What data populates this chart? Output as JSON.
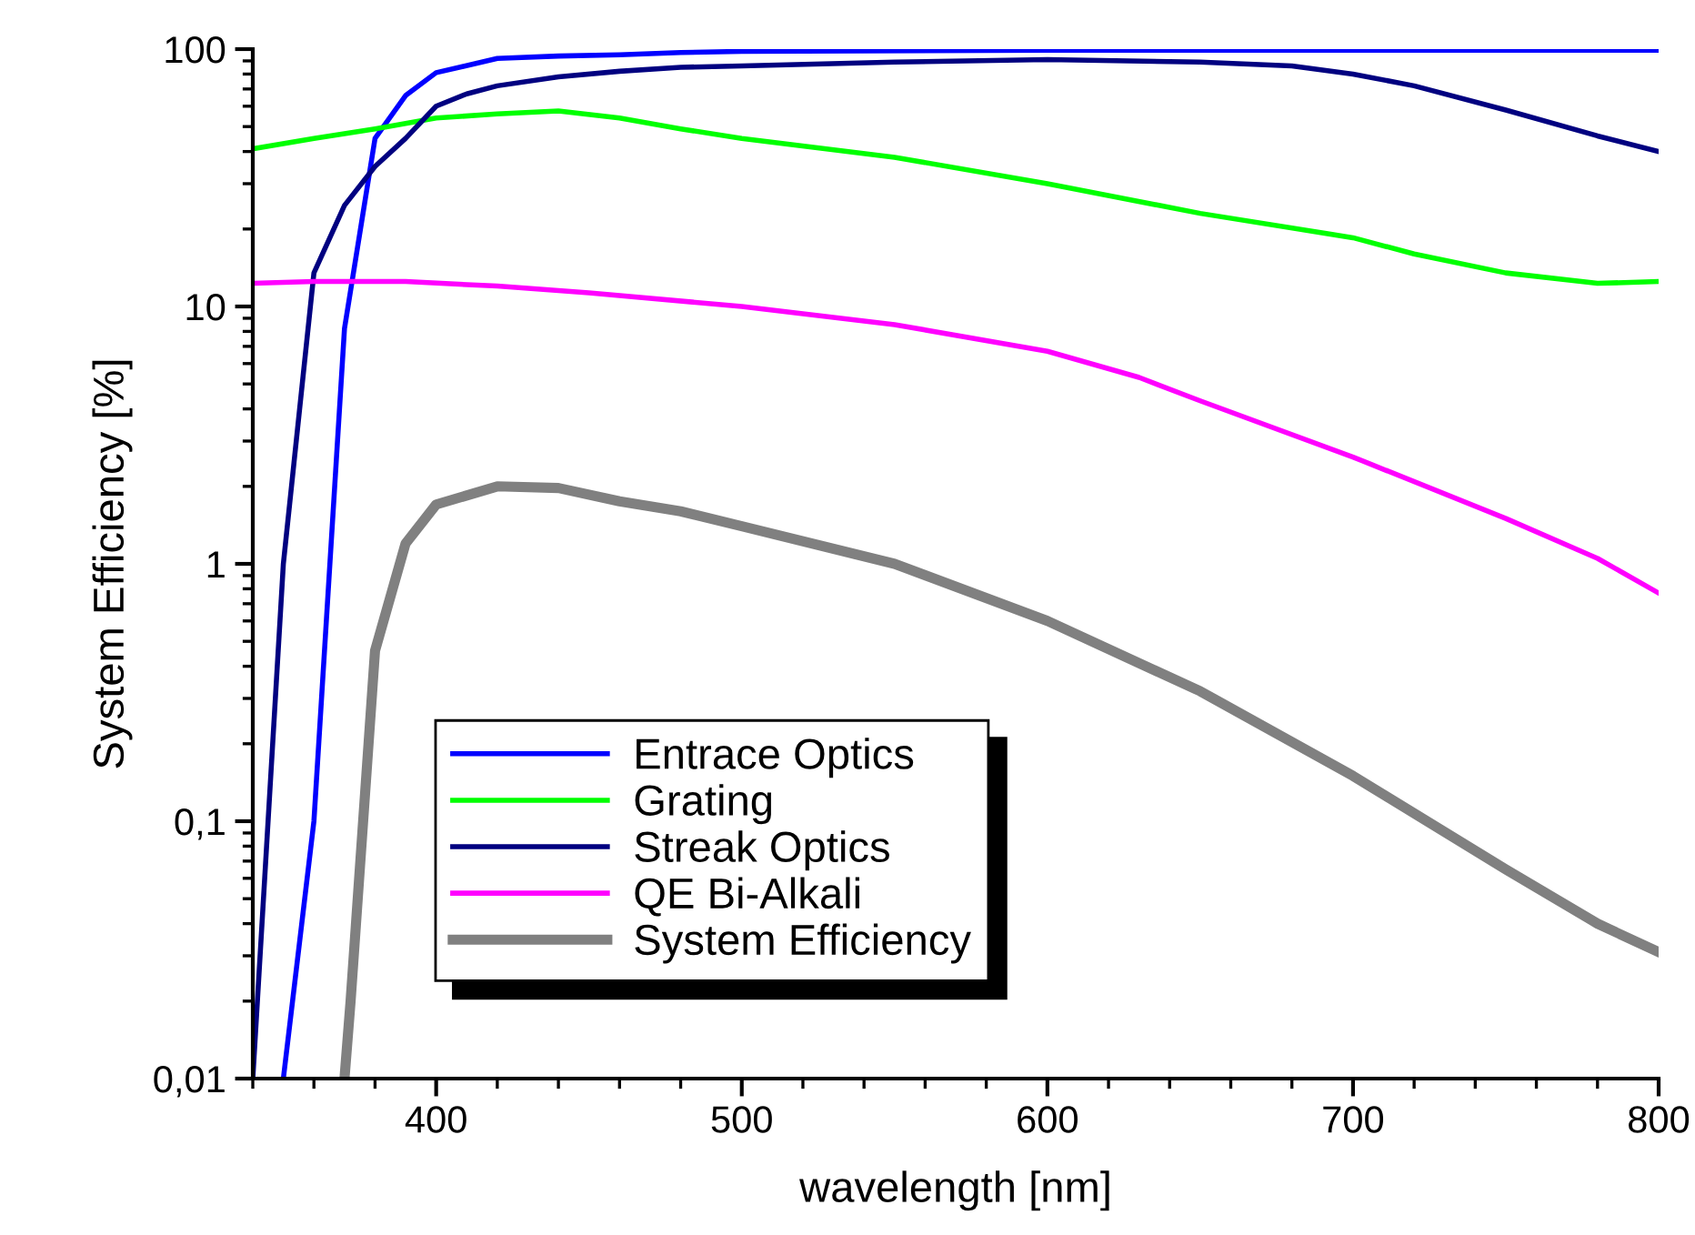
{
  "chart_data": {
    "type": "line",
    "xlabel": "wavelength [nm]",
    "ylabel": "System Efficiency [%]",
    "log": "y",
    "grid": false,
    "legend": "bottom left",
    "marker": "none",
    "line_style": "solid",
    "xlim": [
      340,
      800
    ],
    "xticks": [
      400,
      500,
      600,
      700,
      800
    ],
    "ylim": [
      0.01,
      100
    ],
    "yticks": [
      {
        "value": 0.01,
        "label": "0,01"
      },
      {
        "value": 0.1,
        "label": "0,1"
      },
      1,
      10,
      100
    ],
    "series": [
      {
        "name": "Entrace Optics",
        "color": "#0000ff",
        "x": [
          350,
          360,
          370,
          380,
          390,
          400,
          420,
          440,
          460,
          480,
          500,
          600,
          700,
          800
        ],
        "values": [
          0.01,
          0.1,
          8.2,
          45,
          66,
          81,
          92,
          94,
          95,
          97,
          98,
          99,
          99,
          99
        ]
      },
      {
        "name": "Grating",
        "color": "#00ff00",
        "x": [
          340,
          360,
          380,
          400,
          420,
          440,
          460,
          480,
          500,
          550,
          600,
          650,
          700,
          720,
          750,
          780,
          800
        ],
        "values": [
          41,
          45,
          49,
          54,
          56,
          57.5,
          54,
          49,
          45,
          38,
          30,
          23,
          18.5,
          16,
          13.5,
          12.3,
          12.5
        ]
      },
      {
        "name": "Streak Optics",
        "color": "#000080",
        "x": [
          340,
          350,
          360,
          370,
          380,
          390,
          400,
          410,
          420,
          440,
          460,
          480,
          500,
          550,
          600,
          650,
          680,
          700,
          720,
          750,
          780,
          800
        ],
        "values": [
          0.01,
          1.0,
          13.5,
          24.7,
          35,
          45,
          60,
          67,
          72,
          78,
          82,
          85,
          86,
          89,
          91,
          89,
          86,
          80,
          72,
          58,
          46,
          40
        ]
      },
      {
        "name": "QE Bi-Alkali",
        "color": "#ff00ff",
        "x": [
          340,
          360,
          390,
          420,
          450,
          500,
          550,
          600,
          630,
          650,
          700,
          750,
          780,
          800
        ],
        "values": [
          12.3,
          12.5,
          12.5,
          12,
          11.3,
          10,
          8.5,
          6.7,
          5.3,
          4.3,
          2.6,
          1.5,
          1.05,
          0.77
        ]
      },
      {
        "name": "System Efficiency",
        "color": "#808080",
        "x": [
          370,
          372,
          380,
          390,
          400,
          420,
          440,
          460,
          480,
          500,
          550,
          600,
          650,
          700,
          750,
          780,
          800
        ],
        "values": [
          0.01,
          0.02,
          0.46,
          1.2,
          1.7,
          2.0,
          1.97,
          1.75,
          1.6,
          1.4,
          1.0,
          0.6,
          0.32,
          0.15,
          0.065,
          0.04,
          0.031
        ]
      }
    ]
  }
}
